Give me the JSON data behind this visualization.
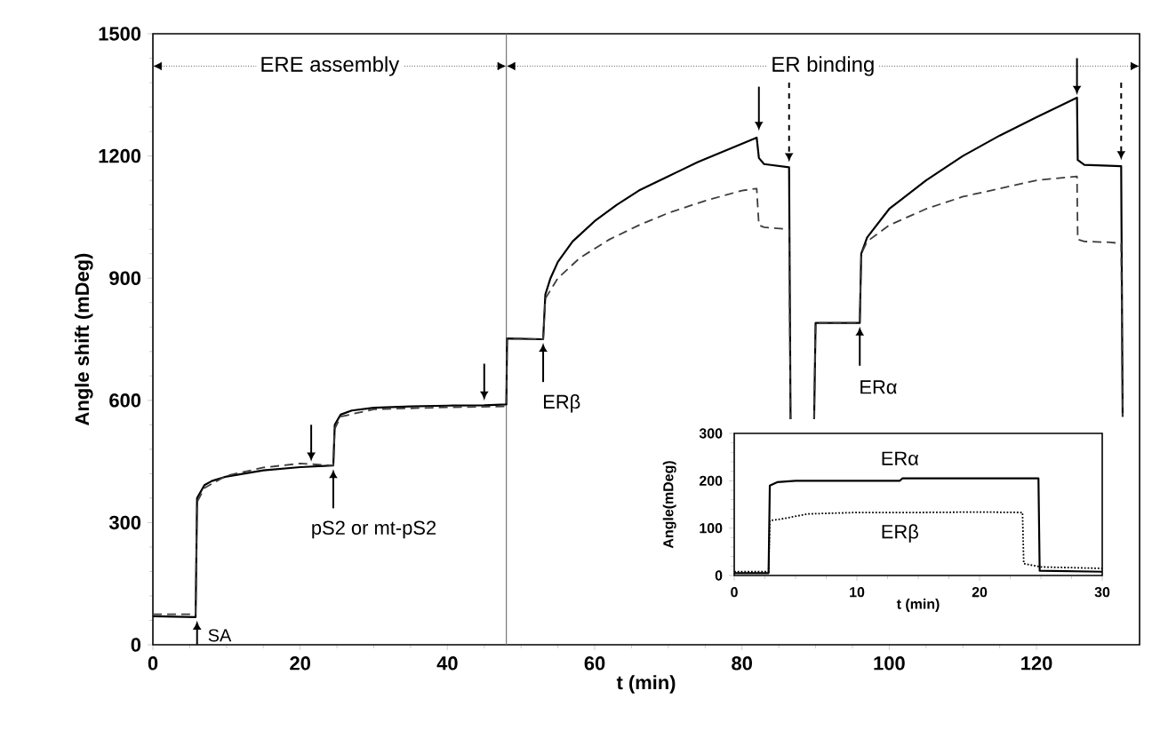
{
  "chart_data": [
    {
      "type": "line",
      "xlabel": "t (min)",
      "ylabel": "Angle shift (mDeg)",
      "xlim": [
        0,
        134
      ],
      "xticks": [
        0,
        20,
        40,
        60,
        80,
        100,
        120
      ],
      "ylim": [
        0,
        1500
      ],
      "yticks": [
        0,
        300,
        600,
        900,
        1200,
        1500
      ],
      "grid": false,
      "marker": "none",
      "series": [
        {
          "color": "#000000",
          "line_style": "solid",
          "x": [
            0,
            5.8,
            6,
            7,
            8,
            10,
            15,
            20,
            24.5,
            24.7,
            25.5,
            27,
            30,
            35,
            40,
            45,
            48,
            48.1,
            53,
            53.3,
            54,
            55,
            57,
            60,
            63,
            66,
            70,
            74,
            78,
            82,
            82.3,
            83,
            86.4,
            86.6,
            88,
            89.8,
            90,
            96,
            96.2,
            97,
            100,
            105,
            110,
            115,
            120,
            125.5,
            125.6,
            126.5,
            131.5,
            131.7
          ],
          "values": [
            70,
            68,
            360,
            392,
            402,
            413,
            428,
            436,
            440,
            540,
            565,
            575,
            582,
            585,
            587,
            588,
            590,
            752,
            750,
            860,
            900,
            940,
            990,
            1040,
            1080,
            1115,
            1150,
            1185,
            1215,
            1245,
            1195,
            1180,
            1172,
            554,
            null,
            554,
            790,
            790,
            960,
            1000,
            1070,
            1140,
            1200,
            1250,
            1295,
            1343,
            1190,
            1178,
            1175,
            560
          ]
        },
        {
          "color": "#3c3c3c",
          "line_style": "dashed",
          "x": [
            0,
            5.8,
            6,
            7,
            10,
            15,
            20,
            24.5,
            24.7,
            25.5,
            30,
            40,
            48,
            48.1,
            53,
            53.3,
            55,
            58,
            62,
            66,
            70,
            75,
            80,
            82,
            82.3,
            83,
            86.4,
            86.6,
            88,
            89.8,
            90,
            96,
            96.2,
            97,
            100,
            105,
            110,
            115,
            120,
            125.5,
            125.6,
            126.5,
            130,
            131.5,
            131.7
          ],
          "values": [
            75,
            75,
            350,
            385,
            415,
            435,
            445,
            440,
            530,
            560,
            578,
            583,
            585,
            752,
            750,
            850,
            900,
            950,
            995,
            1030,
            1060,
            1090,
            1115,
            1120,
            1030,
            1025,
            1020,
            554,
            null,
            554,
            790,
            790,
            960,
            990,
            1030,
            1070,
            1100,
            1120,
            1140,
            1150,
            995,
            990,
            988,
            985,
            560
          ]
        }
      ],
      "ref_lines": [
        {
          "axis": "x",
          "value": 48,
          "color": "#777777"
        }
      ],
      "annotations": [
        "ERE assembly",
        "ER binding",
        {
          "text": "SA",
          "x": 6,
          "y": 68
        },
        {
          "text": "pS2 or mt-pS2",
          "x": 24.5,
          "y": 440
        },
        {
          "text": "ERβ",
          "x": 53,
          "y": 750
        },
        {
          "text": "ERα",
          "x": 96,
          "y": 790
        }
      ]
    },
    {
      "type": "line",
      "xlabel": "t (min)",
      "ylabel": "Angle(mDeg)",
      "xlim": [
        0,
        30
      ],
      "xticks": [
        0,
        10,
        20,
        30
      ],
      "ylim": [
        0,
        300
      ],
      "yticks": [
        0,
        100,
        200,
        300
      ],
      "grid": false,
      "marker": "none",
      "series": [
        {
          "name": "ERα",
          "color": "#000000",
          "line_style": "solid",
          "x": [
            0,
            2.8,
            2.9,
            3.5,
            5,
            13.5,
            13.7,
            24.8,
            24.9,
            30
          ],
          "values": [
            5,
            5,
            190,
            197,
            200,
            200,
            205,
            205,
            10,
            8
          ]
        },
        {
          "name": "ERβ",
          "color": "#000000",
          "line_style": "dotted",
          "x": [
            0,
            2.8,
            2.9,
            4,
            6,
            10,
            15,
            20,
            23.5,
            23.6,
            25,
            30
          ],
          "values": [
            8,
            8,
            116,
            120,
            130,
            133,
            133,
            134,
            133,
            25,
            18,
            15
          ]
        }
      ]
    }
  ]
}
